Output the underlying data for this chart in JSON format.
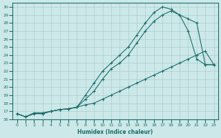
{
  "xlabel": "Humidex (Indice chaleur)",
  "xlim": [
    -0.5,
    23.5
  ],
  "ylim": [
    16,
    30.5
  ],
  "xticks": [
    0,
    1,
    2,
    3,
    4,
    5,
    6,
    7,
    8,
    9,
    10,
    11,
    12,
    13,
    14,
    15,
    16,
    17,
    18,
    19,
    20,
    21,
    22,
    23
  ],
  "yticks": [
    16,
    17,
    18,
    19,
    20,
    21,
    22,
    23,
    24,
    25,
    26,
    27,
    28,
    29,
    30
  ],
  "background_color": "#cce8e8",
  "grid_color": "#aacece",
  "line_color": "#1a6b6b",
  "curve1_x": [
    0,
    1,
    2,
    3,
    4,
    5,
    6,
    7,
    8,
    9,
    10,
    11,
    12,
    13,
    14,
    15,
    16,
    17,
    18,
    19,
    20,
    21,
    22,
    23
  ],
  "curve1_y": [
    16.7,
    16.3,
    16.7,
    16.7,
    17.0,
    17.2,
    17.3,
    17.5,
    18.5,
    19.5,
    21.0,
    22.3,
    23.0,
    24.0,
    25.5,
    27.0,
    28.2,
    29.0,
    29.5,
    29.0,
    28.5,
    28.0,
    22.8,
    22.8
  ],
  "curve2_x": [
    0,
    1,
    2,
    3,
    4,
    5,
    6,
    7,
    8,
    9,
    10,
    11,
    12,
    13,
    14,
    15,
    16,
    17,
    18,
    19,
    20,
    21,
    22,
    23
  ],
  "curve2_y": [
    16.7,
    16.3,
    16.8,
    16.8,
    17.0,
    17.2,
    17.3,
    17.5,
    19.0,
    20.5,
    22.0,
    23.0,
    24.0,
    25.0,
    26.5,
    28.0,
    29.3,
    30.0,
    29.7,
    29.0,
    27.0,
    23.5,
    22.8,
    22.8
  ],
  "curve3_x": [
    0,
    1,
    2,
    3,
    4,
    5,
    6,
    7,
    8,
    9,
    10,
    11,
    12,
    13,
    14,
    15,
    16,
    17,
    18,
    19,
    20,
    21,
    22,
    23
  ],
  "curve3_y": [
    16.7,
    16.3,
    16.7,
    16.7,
    17.0,
    17.2,
    17.3,
    17.5,
    17.8,
    18.0,
    18.5,
    19.0,
    19.5,
    20.0,
    20.5,
    21.0,
    21.5,
    22.0,
    22.5,
    23.0,
    23.5,
    24.0,
    24.5,
    22.8
  ]
}
